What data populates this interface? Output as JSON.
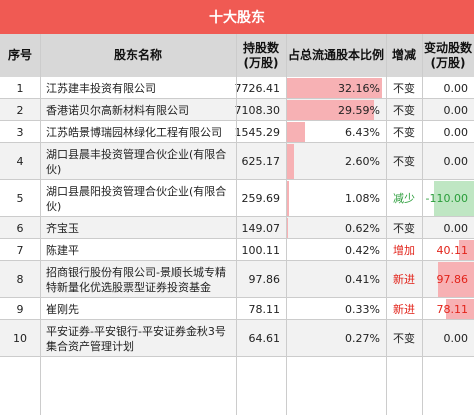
{
  "title": "十大股东",
  "columns": {
    "idx": "序号",
    "name": "股东名称",
    "shares": "持股数\n(万股)",
    "ratio": "占总流通股本比例",
    "change": "增减",
    "change_value": "变动股数\n(万股)"
  },
  "colors": {
    "title_bg": "#f05a53",
    "ratio_bar": "#f7b1b4",
    "increase": "#e2231a",
    "decrease": "#2a9d3a",
    "increase_bar": "#f7b1b4",
    "decrease_bar": "#bfe6c3"
  },
  "rows": [
    {
      "idx": "1",
      "name": "江苏建丰投资有限公司",
      "shares": "7726.41",
      "ratio": "32.16%",
      "ratio_value": 32.16,
      "change": "不变",
      "change_type": "none",
      "change_value": "0.00",
      "change_num": 0
    },
    {
      "idx": "2",
      "name": "香港诺贝尔高新材料有限公司",
      "shares": "7108.30",
      "ratio": "29.59%",
      "ratio_value": 29.59,
      "change": "不变",
      "change_type": "none",
      "change_value": "0.00",
      "change_num": 0
    },
    {
      "idx": "3",
      "name": "江苏皓景博瑞园林绿化工程有限公司",
      "shares": "1545.29",
      "ratio": "6.43%",
      "ratio_value": 6.43,
      "change": "不变",
      "change_type": "none",
      "change_value": "0.00",
      "change_num": 0
    },
    {
      "idx": "4",
      "name": "湖口县晨丰投资管理合伙企业(有限合伙)",
      "shares": "625.17",
      "ratio": "2.60%",
      "ratio_value": 2.6,
      "change": "不变",
      "change_type": "none",
      "change_value": "0.00",
      "change_num": 0
    },
    {
      "idx": "5",
      "name": "湖口县晨阳投资管理合伙企业(有限合伙)",
      "shares": "259.69",
      "ratio": "1.08%",
      "ratio_value": 1.08,
      "change": "减少",
      "change_type": "decrease",
      "change_value": "-110.00",
      "change_num": -110.0
    },
    {
      "idx": "6",
      "name": "齐宝玉",
      "shares": "149.07",
      "ratio": "0.62%",
      "ratio_value": 0.62,
      "change": "不变",
      "change_type": "none",
      "change_value": "0.00",
      "change_num": 0
    },
    {
      "idx": "7",
      "name": "陈建平",
      "shares": "100.11",
      "ratio": "0.42%",
      "ratio_value": 0.42,
      "change": "增加",
      "change_type": "increase",
      "change_value": "40.11",
      "change_num": 40.11
    },
    {
      "idx": "8",
      "name": "招商银行股份有限公司-景顺长城专精特新量化优选股票型证券投资基金",
      "shares": "97.86",
      "ratio": "0.41%",
      "ratio_value": 0.41,
      "change": "新进",
      "change_type": "new",
      "change_value": "97.86",
      "change_num": 97.86
    },
    {
      "idx": "9",
      "name": "崔刚先",
      "shares": "78.11",
      "ratio": "0.33%",
      "ratio_value": 0.33,
      "change": "新进",
      "change_type": "new",
      "change_value": "78.11",
      "change_num": 78.11
    },
    {
      "idx": "10",
      "name": "平安证券-平安银行-平安证券金秋3号集合资产管理计划",
      "shares": "64.61",
      "ratio": "0.27%",
      "ratio_value": 0.27,
      "change": "不变",
      "change_type": "none",
      "change_value": "0.00",
      "change_num": 0
    }
  ]
}
